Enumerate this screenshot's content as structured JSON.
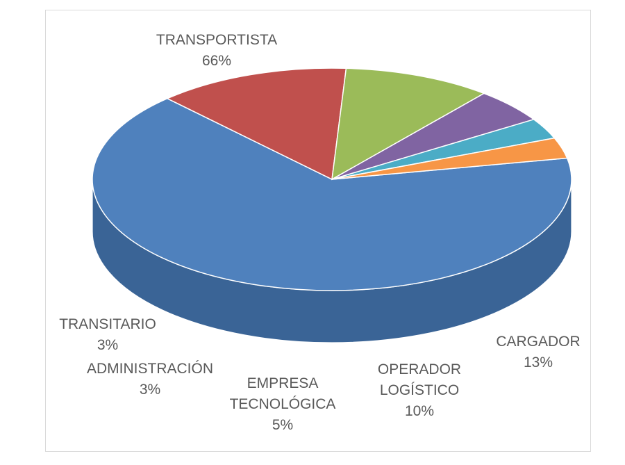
{
  "chart_data": {
    "type": "pie",
    "style": "3d",
    "slices": [
      {
        "name": "TRANSPORTISTA",
        "value": 66,
        "label": "66%",
        "color": "#4f81bd",
        "side_color": "#3a6496"
      },
      {
        "name": "CARGADOR",
        "value": 13,
        "label": "13%",
        "color": "#c0504d",
        "side_color": "#5a1e1c"
      },
      {
        "name": "OPERADOR LOGÍSTICO",
        "name_lines": [
          "OPERADOR",
          "LOGÍSTICO"
        ],
        "value": 10,
        "label": "10%",
        "color": "#9bbb59",
        "side_color": "#4a6226"
      },
      {
        "name": "EMPRESA TECNOLÓGICA",
        "name_lines": [
          "EMPRESA",
          "TECNOLÓGICA"
        ],
        "value": 5,
        "label": "5%",
        "color": "#8064a2",
        "side_color": "#4e3a66"
      },
      {
        "name": "ADMINISTRACIÓN",
        "value": 3,
        "label": "3%",
        "color": "#4bacc6",
        "side_color": "#2a7f94"
      },
      {
        "name": "TRANSITARIO",
        "value": 3,
        "label": "3%",
        "color": "#f79646",
        "side_color": "#b8641f"
      }
    ]
  }
}
